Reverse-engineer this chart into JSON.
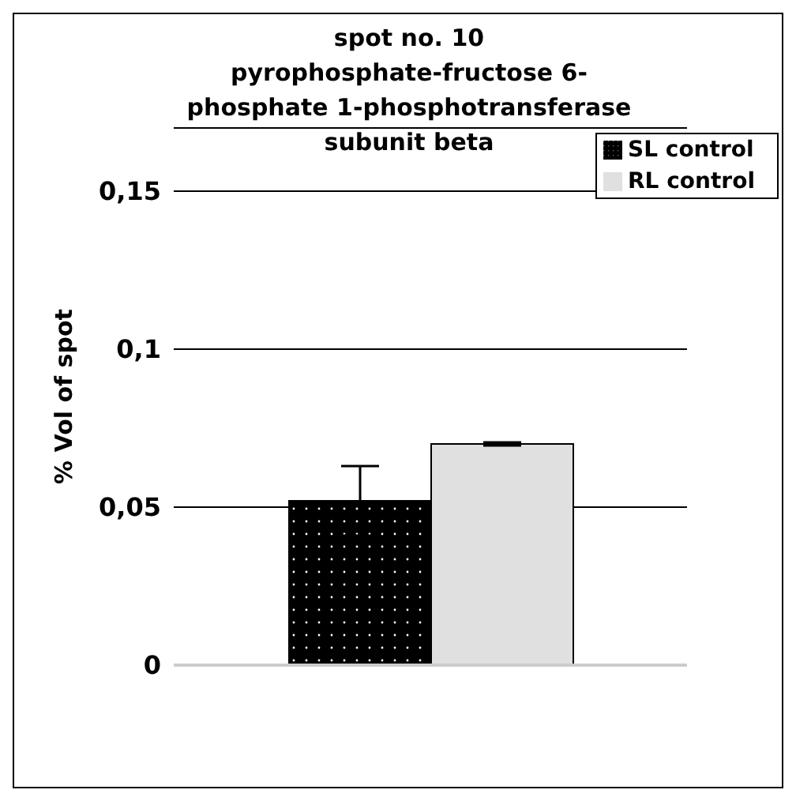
{
  "chart_data": {
    "type": "bar",
    "title": "spot no. 10\npyrophosphate-fructose 6-\nphosphate 1-phosphotransferase\nsubunit beta",
    "ylabel": "% Vol of spot",
    "categories": [
      null
    ],
    "series": [
      {
        "name": "SL control",
        "color": "#000000",
        "values": [
          0.052
        ],
        "errors": [
          0.011
        ]
      },
      {
        "name": "RL control",
        "color": "#e0e0e0",
        "values": [
          0.07
        ],
        "errors": [
          0.0005
        ]
      }
    ],
    "ylim": [
      0,
      0.17
    ],
    "yticks": [
      {
        "value": 0,
        "label": "0"
      },
      {
        "value": 0.05,
        "label": "0,05"
      },
      {
        "value": 0.1,
        "label": "0,1"
      },
      {
        "value": 0.15,
        "label": "0,15"
      }
    ],
    "grid": "y",
    "legend": "top right"
  }
}
